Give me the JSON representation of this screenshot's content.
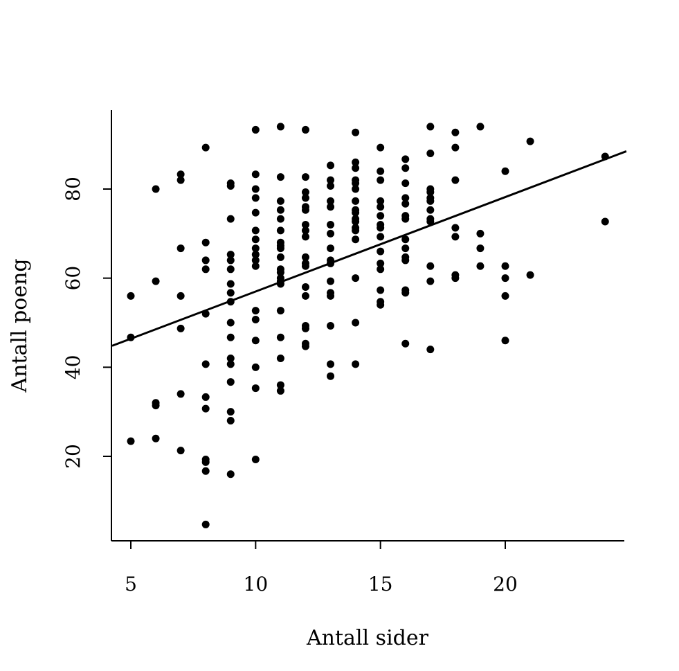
{
  "chart_data": {
    "type": "scatter",
    "title": "",
    "xlabel": "Antall sider",
    "ylabel": "Antall poeng",
    "xlim": [
      4.3,
      24.8
    ],
    "ylim": [
      1,
      96
    ],
    "x_ticks": [
      5,
      10,
      15,
      20
    ],
    "y_ticks": [
      20,
      40,
      60,
      80
    ],
    "grid": false,
    "point_color": "#000000",
    "line_color": "#000000",
    "regression_line": {
      "intercept": 35.8,
      "slope": 2.12
    },
    "points": [
      [
        5,
        56
      ],
      [
        5,
        46.7
      ],
      [
        5,
        23.4
      ],
      [
        6,
        80
      ],
      [
        6,
        59.3
      ],
      [
        6,
        32
      ],
      [
        6,
        31.4
      ],
      [
        6,
        24
      ],
      [
        7,
        83.3
      ],
      [
        7,
        82
      ],
      [
        7,
        66.7
      ],
      [
        7,
        56
      ],
      [
        7,
        48.7
      ],
      [
        7,
        34
      ],
      [
        7,
        21.3
      ],
      [
        8,
        89.3
      ],
      [
        8,
        68
      ],
      [
        8,
        64
      ],
      [
        8,
        62
      ],
      [
        8,
        52
      ],
      [
        8,
        40.7
      ],
      [
        8,
        33.3
      ],
      [
        8,
        30.7
      ],
      [
        8,
        19.3
      ],
      [
        8,
        18.7
      ],
      [
        8,
        16.7
      ],
      [
        8,
        4.7
      ],
      [
        9,
        81.3
      ],
      [
        9,
        80.7
      ],
      [
        9,
        73.3
      ],
      [
        9,
        65.3
      ],
      [
        9,
        64
      ],
      [
        9,
        62
      ],
      [
        9,
        58.7
      ],
      [
        9,
        56.7
      ],
      [
        9,
        54.7
      ],
      [
        9,
        50
      ],
      [
        9,
        46.7
      ],
      [
        9,
        42
      ],
      [
        9,
        40.7
      ],
      [
        9,
        36.7
      ],
      [
        9,
        30
      ],
      [
        9,
        28
      ],
      [
        9,
        16
      ],
      [
        10,
        93.3
      ],
      [
        10,
        83.3
      ],
      [
        10,
        80
      ],
      [
        10,
        78
      ],
      [
        10,
        74.7
      ],
      [
        10,
        70.7
      ],
      [
        10,
        68.7
      ],
      [
        10,
        66.7
      ],
      [
        10,
        65.3
      ],
      [
        10,
        64
      ],
      [
        10,
        62.7
      ],
      [
        10,
        52.7
      ],
      [
        10,
        50.7
      ],
      [
        10,
        46
      ],
      [
        10,
        40
      ],
      [
        10,
        35.3
      ],
      [
        10,
        19.3
      ],
      [
        11,
        94
      ],
      [
        11,
        82.7
      ],
      [
        11,
        77.3
      ],
      [
        11,
        75.3
      ],
      [
        11,
        73.3
      ],
      [
        11,
        70.7
      ],
      [
        11,
        68
      ],
      [
        11,
        67.3
      ],
      [
        11,
        66.7
      ],
      [
        11,
        64.7
      ],
      [
        11,
        62
      ],
      [
        11,
        61.3
      ],
      [
        11,
        60
      ],
      [
        11,
        59.3
      ],
      [
        11,
        58.7
      ],
      [
        11,
        52.7
      ],
      [
        11,
        46.7
      ],
      [
        11,
        42
      ],
      [
        11,
        36
      ],
      [
        11,
        34.7
      ],
      [
        12,
        93.3
      ],
      [
        12,
        82.7
      ],
      [
        12,
        79.3
      ],
      [
        12,
        78
      ],
      [
        12,
        76
      ],
      [
        12,
        75.3
      ],
      [
        12,
        72
      ],
      [
        12,
        70.7
      ],
      [
        12,
        69.3
      ],
      [
        12,
        64.7
      ],
      [
        12,
        63.3
      ],
      [
        12,
        62.7
      ],
      [
        12,
        58
      ],
      [
        12,
        56
      ],
      [
        12,
        49.3
      ],
      [
        12,
        48.7
      ],
      [
        12,
        45.3
      ],
      [
        12,
        44.7
      ],
      [
        13,
        85.3
      ],
      [
        13,
        82
      ],
      [
        13,
        80.7
      ],
      [
        13,
        77.3
      ],
      [
        13,
        76
      ],
      [
        13,
        72
      ],
      [
        13,
        70
      ],
      [
        13,
        66.7
      ],
      [
        13,
        64
      ],
      [
        13,
        63.3
      ],
      [
        13,
        59.3
      ],
      [
        13,
        56.7
      ],
      [
        13,
        56
      ],
      [
        13,
        49.3
      ],
      [
        13,
        40.7
      ],
      [
        13,
        38
      ],
      [
        14,
        92.7
      ],
      [
        14,
        86
      ],
      [
        14,
        84.7
      ],
      [
        14,
        82
      ],
      [
        14,
        81.3
      ],
      [
        14,
        80
      ],
      [
        14,
        77.3
      ],
      [
        14,
        75.3
      ],
      [
        14,
        74.7
      ],
      [
        14,
        73.3
      ],
      [
        14,
        72.7
      ],
      [
        14,
        71.3
      ],
      [
        14,
        70.7
      ],
      [
        14,
        68.7
      ],
      [
        14,
        60
      ],
      [
        14,
        50
      ],
      [
        14,
        40.7
      ],
      [
        15,
        89.3
      ],
      [
        15,
        84
      ],
      [
        15,
        82
      ],
      [
        15,
        77.3
      ],
      [
        15,
        76
      ],
      [
        15,
        74
      ],
      [
        15,
        72
      ],
      [
        15,
        71.3
      ],
      [
        15,
        69.3
      ],
      [
        15,
        66
      ],
      [
        15,
        63.3
      ],
      [
        15,
        62
      ],
      [
        15,
        57.3
      ],
      [
        15,
        54.7
      ],
      [
        15,
        54
      ],
      [
        16,
        86.7
      ],
      [
        16,
        84.7
      ],
      [
        16,
        81.3
      ],
      [
        16,
        78
      ],
      [
        16,
        76.7
      ],
      [
        16,
        74
      ],
      [
        16,
        73.3
      ],
      [
        16,
        68.7
      ],
      [
        16,
        66.7
      ],
      [
        16,
        64.7
      ],
      [
        16,
        64
      ],
      [
        16,
        57.3
      ],
      [
        16,
        56.7
      ],
      [
        16,
        45.3
      ],
      [
        17,
        94
      ],
      [
        17,
        88
      ],
      [
        17,
        80
      ],
      [
        17,
        79.3
      ],
      [
        17,
        78
      ],
      [
        17,
        77.3
      ],
      [
        17,
        75.3
      ],
      [
        17,
        73.3
      ],
      [
        17,
        72.7
      ],
      [
        17,
        62.7
      ],
      [
        17,
        59.3
      ],
      [
        17,
        44
      ],
      [
        18,
        92.7
      ],
      [
        18,
        89.3
      ],
      [
        18,
        82
      ],
      [
        18,
        71.3
      ],
      [
        18,
        69.3
      ],
      [
        18,
        60.7
      ],
      [
        18,
        60
      ],
      [
        19,
        94
      ],
      [
        19,
        70
      ],
      [
        19,
        66.7
      ],
      [
        19,
        62.7
      ],
      [
        20,
        84
      ],
      [
        20,
        62.7
      ],
      [
        20,
        60
      ],
      [
        20,
        56
      ],
      [
        20,
        46
      ],
      [
        21,
        90.7
      ],
      [
        21,
        60.7
      ],
      [
        24,
        87.3
      ],
      [
        24,
        72.7
      ]
    ]
  }
}
